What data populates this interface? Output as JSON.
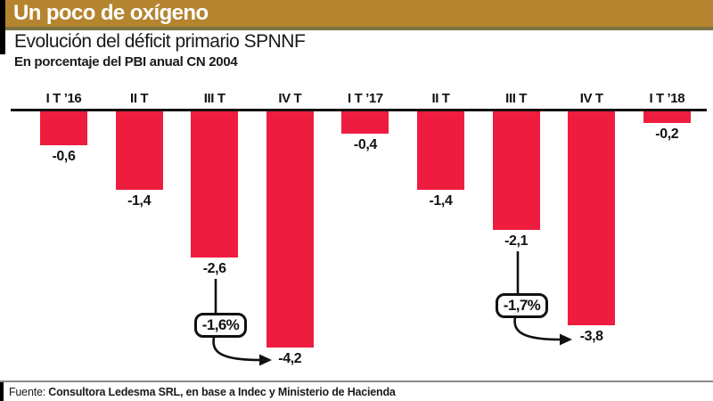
{
  "header": {
    "kicker": "Un poco de oxígeno",
    "title": "Evolución del déficit primario SPNNF",
    "subtitle": "En porcentaje del PBI anual CN 2004"
  },
  "chart_data": {
    "type": "bar",
    "title": "Evolución del déficit primario SPNNF",
    "subtitle": "En porcentaje del PBI anual CN 2004",
    "xlabel": "",
    "ylabel": "En porcentaje del PBI anual CN 2004",
    "categories": [
      "I T ’16",
      "II T",
      "III T",
      "IV T",
      "I T ’17",
      "II T",
      "III T",
      "IV T",
      "I T ’18"
    ],
    "values": [
      -0.6,
      -1.4,
      -2.6,
      -4.2,
      -0.4,
      -1.4,
      -2.1,
      -3.8,
      -0.2
    ],
    "value_labels": [
      "-0,6",
      "-1,4",
      "-2,6",
      "-4,2",
      "-0,4",
      "-1,4",
      "-2,1",
      "-3,8",
      "-0,2"
    ],
    "ylim": [
      -4.5,
      0
    ],
    "grid": "off",
    "legend": "none",
    "orientation": "vertical-negative",
    "bar_color": "#ee1d3f",
    "annotations": [
      {
        "label": "-1,6%",
        "points_to_value": "-4,2",
        "points_to_category": "IV T ’16"
      },
      {
        "label": "-1,7%",
        "points_to_value": "-3,8",
        "points_to_category": "IV T ’17"
      }
    ]
  },
  "footer": {
    "source_prefix": "Fuente:",
    "source_text": "Consultora Ledesma SRL, en base a Indec y Ministerio de Hacienda"
  },
  "colors": {
    "bar": "#ee1d3f",
    "kicker_background": "#b5842f",
    "kicker_underline": "#7b7442",
    "axis": "#111111",
    "footer_rule": "#8a8a8a",
    "text": "#121212",
    "kicker_text": "#ffffff"
  }
}
